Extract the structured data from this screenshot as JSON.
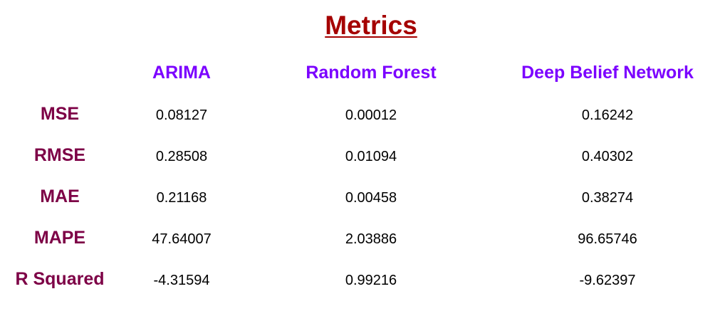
{
  "title": "Metrics",
  "columns": [
    "ARIMA",
    "Random Forest",
    "Deep Belief Network"
  ],
  "rows": [
    {
      "label": "MSE",
      "values": [
        "0.08127",
        "0.00012",
        "0.16242"
      ]
    },
    {
      "label": "RMSE",
      "values": [
        "0.28508",
        "0.01094",
        "0.40302"
      ]
    },
    {
      "label": "MAE",
      "values": [
        "0.21168",
        "0.00458",
        "0.38274"
      ]
    },
    {
      "label": "MAPE",
      "values": [
        "47.64007",
        "2.03886",
        "96.65746"
      ]
    },
    {
      "label": "R Squared",
      "values": [
        "-4.31594",
        "0.99216",
        "-9.62397"
      ]
    }
  ],
  "colors": {
    "title": "#a50000",
    "column_header": "#7b00ff",
    "row_label": "#7d0046",
    "cell_text": "#000000"
  }
}
